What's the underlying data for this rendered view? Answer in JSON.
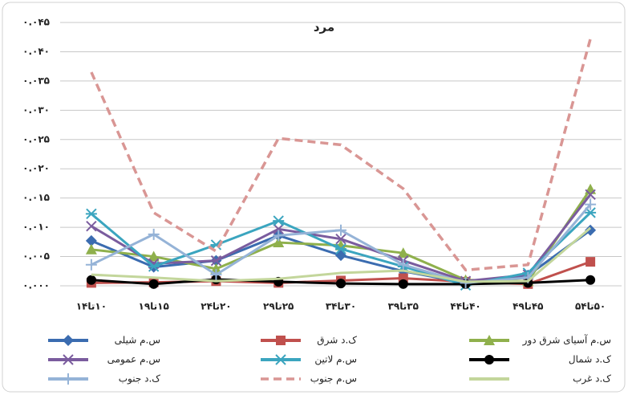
{
  "chart_data": {
    "type": "line",
    "title": "مرد",
    "categories": [
      "۱۰تا۱۴",
      "۱۵تا۱۹",
      "۲۰تا۲۴",
      "۲۵تا۲۹",
      "۳۰تا۳۴",
      "۳۵تا۳۹",
      "۴۰تا۴۴",
      "۴۵تا۴۹",
      "۵۰تا۵۴"
    ],
    "ylim": [
      0,
      0.045
    ],
    "yticks": [
      {
        "value": 0,
        "label": "۰.۰۰۰"
      },
      {
        "value": 0.005,
        "label": "۰.۰۰۵"
      },
      {
        "value": 0.01,
        "label": "۰.۰۱۰"
      },
      {
        "value": 0.015,
        "label": "۰.۰۱۵"
      },
      {
        "value": 0.02,
        "label": "۰.۰۲۰"
      },
      {
        "value": 0.025,
        "label": "۰.۰۲۵"
      },
      {
        "value": 0.03,
        "label": "۰.۰۳۰"
      },
      {
        "value": 0.035,
        "label": "۰.۰۳۵"
      },
      {
        "value": 0.04,
        "label": "۰.۰۴۰"
      },
      {
        "value": 0.045,
        "label": "۰.۰۴۵"
      }
    ],
    "grid": true,
    "series": [
      {
        "name": "س.م شیلی",
        "color": "#3b6cb0",
        "marker": "diamond",
        "values": [
          0.0077,
          0.0032,
          0.0043,
          0.0086,
          0.0052,
          0.0025,
          0.0005,
          0.0018,
          0.0095
        ]
      },
      {
        "name": "ک.د شرق",
        "color": "#c0504d",
        "marker": "square",
        "values": [
          0.0005,
          0.0006,
          0.0008,
          0.0005,
          0.0009,
          0.0013,
          0.0007,
          0.0003,
          0.0041
        ]
      },
      {
        "name": "س.م آسیای شرق دور",
        "color": "#8fb04c",
        "marker": "triangle",
        "values": [
          0.0062,
          0.005,
          0.0029,
          0.0074,
          0.0069,
          0.0056,
          0.001,
          0.0008,
          0.0165
        ]
      },
      {
        "name": "س.م عمومی",
        "color": "#7a5c9e",
        "marker": "x",
        "values": [
          0.0102,
          0.0038,
          0.0043,
          0.0097,
          0.008,
          0.0043,
          0.0008,
          0.0019,
          0.0156
        ]
      },
      {
        "name": "س.م لاتین",
        "color": "#3ba5bf",
        "marker": "star",
        "values": [
          0.0123,
          0.0033,
          0.007,
          0.0111,
          0.0063,
          0.0033,
          0.0001,
          0.0022,
          0.0125
        ]
      },
      {
        "name": "ک.د شمال",
        "color": "#000000",
        "marker": "circle",
        "values": [
          0.001,
          0.0003,
          0.0011,
          0.0007,
          0.0004,
          0.0003,
          0.0003,
          0.0005,
          0.001
        ]
      },
      {
        "name": "ک.د جنوب",
        "color": "#95b3d7",
        "marker": "plus",
        "values": [
          0.0036,
          0.0088,
          0.0019,
          0.0086,
          0.0095,
          0.0036,
          0.0005,
          0.0014,
          0.0139
        ]
      },
      {
        "name": "س.م جنوب",
        "color": "#d99694",
        "dash": true,
        "values": [
          0.0365,
          0.0125,
          0.0059,
          0.0252,
          0.0241,
          0.0166,
          0.0027,
          0.0036,
          0.0422
        ]
      },
      {
        "name": "ک.د غرب",
        "color": "#c3d69b",
        "values": [
          0.0019,
          0.0014,
          0.0008,
          0.0012,
          0.0022,
          0.0026,
          0.0007,
          0.0008,
          0.0099
        ]
      }
    ]
  }
}
